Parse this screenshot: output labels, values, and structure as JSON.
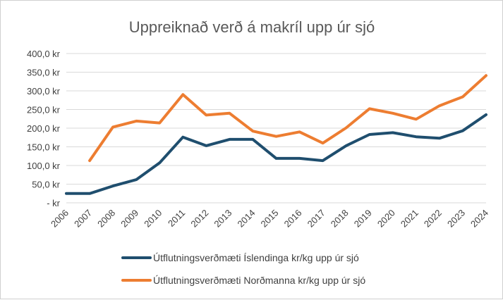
{
  "chart_data": {
    "type": "line",
    "title": "Uppreiknað verð á makríl upp úr sjó",
    "xlabel": "",
    "ylabel": "",
    "x": [
      "2006",
      "2007",
      "2008",
      "2009",
      "2010",
      "2011",
      "2012",
      "2013",
      "2014",
      "2015",
      "2016",
      "2017",
      "2018",
      "2019",
      "2020",
      "2021",
      "2022",
      "2023",
      "2024"
    ],
    "ylim": [
      0,
      400
    ],
    "yticks": [
      0,
      50,
      100,
      150,
      200,
      250,
      300,
      350,
      400
    ],
    "ytick_labels": [
      "-   kr",
      "50,0 kr",
      "100,0 kr",
      "150,0 kr",
      "200,0 kr",
      "250,0 kr",
      "300,0 kr",
      "350,0 kr",
      "400,0 kr"
    ],
    "grid": true,
    "legend_position": "bottom",
    "series": [
      {
        "name": "Útflutningsverðmæti Íslendinga kr/kg upp úr sjó",
        "color": "#1f4e6e",
        "values": [
          25,
          25,
          45,
          62,
          107,
          176,
          153,
          170,
          170,
          119,
          119,
          113,
          153,
          183,
          188,
          177,
          173,
          193,
          236
        ]
      },
      {
        "name": "Útflutningsverðmæti Norðmanna kr/kg upp úr sjó",
        "color": "#ed7d31",
        "values": [
          null,
          113,
          203,
          219,
          214,
          290,
          235,
          240,
          192,
          178,
          190,
          160,
          201,
          252,
          240,
          224,
          260,
          284,
          341
        ]
      }
    ]
  }
}
